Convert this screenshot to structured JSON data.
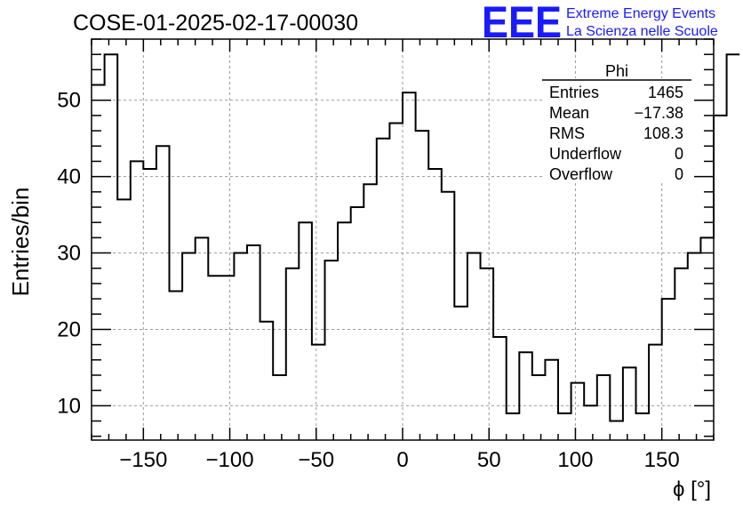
{
  "header": {
    "title": "COSE-01-2025-02-17-00030",
    "logo_text": "EEE",
    "logo_line1": "Extreme Energy Events",
    "logo_line2": "La Scienza nelle Scuole",
    "brand_color": "#1a1aff"
  },
  "stats": {
    "name": "Phi",
    "rows": [
      {
        "label": "Entries",
        "value": "1465"
      },
      {
        "label": "Mean",
        "value": "−17.38"
      },
      {
        "label": "RMS",
        "value": "108.3"
      },
      {
        "label": "Underflow",
        "value": "0"
      },
      {
        "label": "Overflow",
        "value": "0"
      }
    ]
  },
  "chart_data": {
    "type": "bar",
    "style": "step-histogram",
    "xlabel": "ϕ [°]",
    "ylabel": "Entries/bin",
    "xlim": [
      -180,
      180
    ],
    "ylim": [
      5.5,
      58
    ],
    "bin_width": 7.5,
    "x_ticks": [
      -150,
      -100,
      -50,
      0,
      50,
      100,
      150
    ],
    "x_tick_labels": [
      "−150",
      "−100",
      "−50",
      "0",
      "50",
      "100",
      "150"
    ],
    "y_ticks": [
      10,
      20,
      30,
      40,
      50
    ],
    "y_tick_labels": [
      "10",
      "20",
      "30",
      "40",
      "50"
    ],
    "grid": true,
    "values": [
      52,
      56,
      37,
      42,
      41,
      44,
      25,
      30,
      32,
      27,
      27,
      30,
      31,
      21,
      14,
      28,
      34,
      18,
      29,
      34,
      36,
      39,
      45,
      47,
      51,
      46,
      41,
      38,
      23,
      30,
      28,
      19,
      9,
      17,
      14,
      16,
      9,
      13,
      10,
      14,
      8,
      15,
      9,
      18,
      24,
      28,
      30,
      32,
      48,
      56
    ]
  }
}
